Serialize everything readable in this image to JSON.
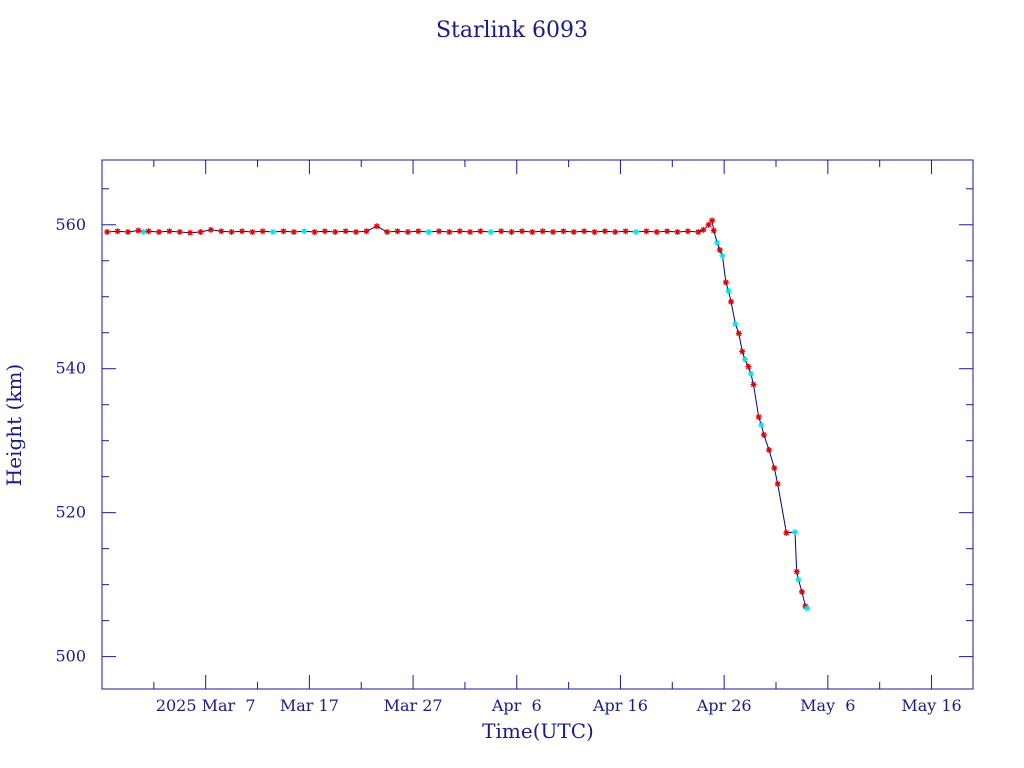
{
  "chart_data": {
    "type": "line",
    "title": "Starlink 6093",
    "xlabel": "Time(UTC)",
    "ylabel": "Height (km)",
    "x_tick_labels": [
      "2025 Mar  7",
      "Mar 17",
      "Mar 27",
      "Apr  6",
      "Apr 16",
      "Apr 26",
      "May  6",
      "May 16"
    ],
    "x_tick_dates": [
      "2025-03-07",
      "2025-03-17",
      "2025-03-27",
      "2025-04-06",
      "2025-04-16",
      "2025-04-26",
      "2025-05-06",
      "2025-05-16"
    ],
    "y_ticks": [
      500,
      520,
      540,
      560
    ],
    "xlim": [
      "2025-02-25",
      "2025-05-20"
    ],
    "ylim": [
      495.5,
      569
    ],
    "grid": false,
    "colors": {
      "axis": "#1a1a8c",
      "line": "#00008b",
      "marker_red": "#e00000",
      "marker_cyan": "#00e5e5"
    },
    "series": [
      {
        "points": [
          [
            "2025-02-25T12",
            559.0,
            "r"
          ],
          [
            "2025-02-26T12",
            559.1,
            "r"
          ],
          [
            "2025-02-27T12",
            559.0,
            "r"
          ],
          [
            "2025-02-28T12",
            559.2,
            "r"
          ],
          [
            "2025-03-01T00",
            559.0,
            "c"
          ],
          [
            "2025-03-01T12",
            559.1,
            "r"
          ],
          [
            "2025-03-02T12",
            559.0,
            "r"
          ],
          [
            "2025-03-03T12",
            559.1,
            "r"
          ],
          [
            "2025-03-04T12",
            559.0,
            "r"
          ],
          [
            "2025-03-05T12",
            558.9,
            "r"
          ],
          [
            "2025-03-06T12",
            559.0,
            "r"
          ],
          [
            "2025-03-07T12",
            559.3,
            "r"
          ],
          [
            "2025-03-08T12",
            559.1,
            "r"
          ],
          [
            "2025-03-09T12",
            559.0,
            "r"
          ],
          [
            "2025-03-10T12",
            559.1,
            "r"
          ],
          [
            "2025-03-11T12",
            559.0,
            "r"
          ],
          [
            "2025-03-12T12",
            559.1,
            "r"
          ],
          [
            "2025-03-13T12",
            559.0,
            "c"
          ],
          [
            "2025-03-14T12",
            559.1,
            "r"
          ],
          [
            "2025-03-15T12",
            559.0,
            "r"
          ],
          [
            "2025-03-16T12",
            559.1,
            "c"
          ],
          [
            "2025-03-17T12",
            559.0,
            "r"
          ],
          [
            "2025-03-18T12",
            559.1,
            "r"
          ],
          [
            "2025-03-19T12",
            559.0,
            "r"
          ],
          [
            "2025-03-20T12",
            559.1,
            "r"
          ],
          [
            "2025-03-21T12",
            559.0,
            "r"
          ],
          [
            "2025-03-22T12",
            559.1,
            "r"
          ],
          [
            "2025-03-23T12",
            559.8,
            "r"
          ],
          [
            "2025-03-24T12",
            559.0,
            "r"
          ],
          [
            "2025-03-25T12",
            559.1,
            "r"
          ],
          [
            "2025-03-26T12",
            559.0,
            "r"
          ],
          [
            "2025-03-27T12",
            559.1,
            "r"
          ],
          [
            "2025-03-28T12",
            559.0,
            "c"
          ],
          [
            "2025-03-29T12",
            559.1,
            "r"
          ],
          [
            "2025-03-30T12",
            559.0,
            "r"
          ],
          [
            "2025-03-31T12",
            559.1,
            "r"
          ],
          [
            "2025-04-01T12",
            559.0,
            "r"
          ],
          [
            "2025-04-02T12",
            559.1,
            "r"
          ],
          [
            "2025-04-03T12",
            559.0,
            "c"
          ],
          [
            "2025-04-04T12",
            559.1,
            "r"
          ],
          [
            "2025-04-05T12",
            559.0,
            "r"
          ],
          [
            "2025-04-06T12",
            559.1,
            "r"
          ],
          [
            "2025-04-07T12",
            559.0,
            "r"
          ],
          [
            "2025-04-08T12",
            559.1,
            "r"
          ],
          [
            "2025-04-09T12",
            559.0,
            "r"
          ],
          [
            "2025-04-10T12",
            559.1,
            "r"
          ],
          [
            "2025-04-11T12",
            559.0,
            "r"
          ],
          [
            "2025-04-12T12",
            559.1,
            "r"
          ],
          [
            "2025-04-13T12",
            559.0,
            "r"
          ],
          [
            "2025-04-14T12",
            559.1,
            "r"
          ],
          [
            "2025-04-15T12",
            559.0,
            "r"
          ],
          [
            "2025-04-16T12",
            559.1,
            "r"
          ],
          [
            "2025-04-17T12",
            559.0,
            "c"
          ],
          [
            "2025-04-18T12",
            559.1,
            "r"
          ],
          [
            "2025-04-19T12",
            559.0,
            "r"
          ],
          [
            "2025-04-20T12",
            559.1,
            "r"
          ],
          [
            "2025-04-21T12",
            559.0,
            "r"
          ],
          [
            "2025-04-22T12",
            559.1,
            "r"
          ],
          [
            "2025-04-23T12",
            559.0,
            "r"
          ],
          [
            "2025-04-24T00",
            559.3,
            "r"
          ],
          [
            "2025-04-24T12",
            560.0,
            "r"
          ],
          [
            "2025-04-24T20",
            560.6,
            "r"
          ],
          [
            "2025-04-25T00",
            559.2,
            "r"
          ],
          [
            "2025-04-25T08",
            557.5,
            "c"
          ],
          [
            "2025-04-25T14",
            556.5,
            "r"
          ],
          [
            "2025-04-25T20",
            555.7,
            "c"
          ],
          [
            "2025-04-26T04",
            552.0,
            "r"
          ],
          [
            "2025-04-26T10",
            550.8,
            "c"
          ],
          [
            "2025-04-26T16",
            549.3,
            "r"
          ],
          [
            "2025-04-27T02",
            546.2,
            "c"
          ],
          [
            "2025-04-27T10",
            544.9,
            "r"
          ],
          [
            "2025-04-27T18",
            542.4,
            "r"
          ],
          [
            "2025-04-28T00",
            541.3,
            "c"
          ],
          [
            "2025-04-28T08",
            540.3,
            "r"
          ],
          [
            "2025-04-28T14",
            539.3,
            "c"
          ],
          [
            "2025-04-28T20",
            537.8,
            "r"
          ],
          [
            "2025-04-29T08",
            533.3,
            "r"
          ],
          [
            "2025-04-29T14",
            532.2,
            "c"
          ],
          [
            "2025-04-29T20",
            530.8,
            "r"
          ],
          [
            "2025-04-30T08",
            528.7,
            "r"
          ],
          [
            "2025-04-30T20",
            526.2,
            "r"
          ],
          [
            "2025-05-01T04",
            524.0,
            "r"
          ],
          [
            "2025-05-02T00",
            517.2,
            "r"
          ],
          [
            "2025-05-02T20",
            517.3,
            "c"
          ],
          [
            "2025-05-03T00",
            511.8,
            "r"
          ],
          [
            "2025-05-03T04",
            510.7,
            "c"
          ],
          [
            "2025-05-03T12",
            509.0,
            "r"
          ],
          [
            "2025-05-03T20",
            507.0,
            "r"
          ],
          [
            "2025-05-04T00",
            506.7,
            "c"
          ]
        ]
      }
    ]
  }
}
